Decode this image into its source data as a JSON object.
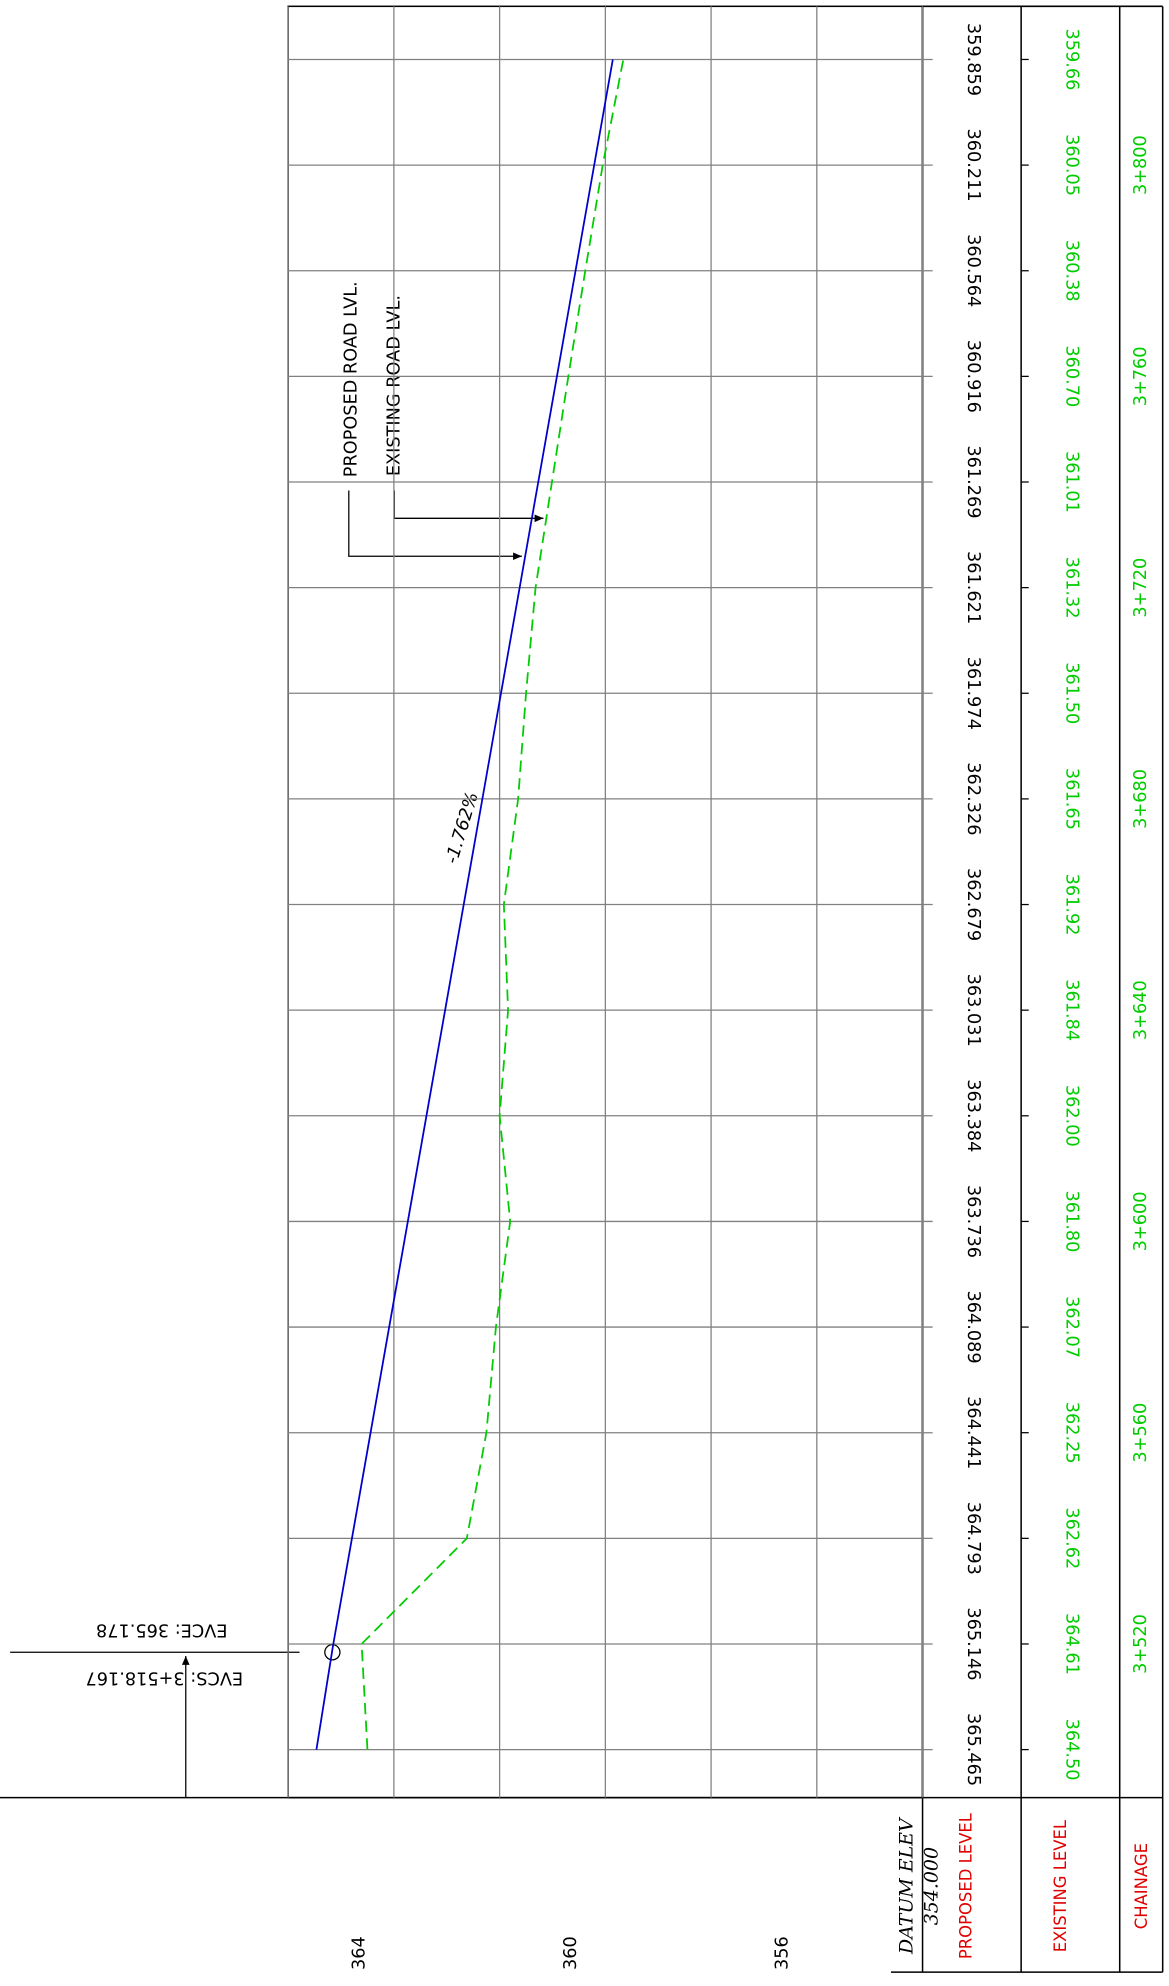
{
  "chart_data": {
    "type": "profile",
    "categories": [
      null,
      "3+520",
      null,
      "3+560",
      null,
      "3+600",
      null,
      "3+640",
      null,
      "3+680",
      null,
      "3+720",
      null,
      "3+760",
      null,
      "3+800",
      null
    ],
    "category_title": "CHAINAGE",
    "series": [
      {
        "name": "PROPOSED LEVEL",
        "color": "#0000cc",
        "line_style": "solid",
        "values": [
          365.465,
          365.146,
          364.793,
          364.441,
          364.089,
          363.736,
          363.384,
          363.031,
          362.679,
          362.326,
          361.974,
          361.621,
          361.269,
          360.916,
          360.564,
          360.211,
          359.859
        ]
      },
      {
        "name": "EXISTING LEVEL",
        "color": "#00cc00",
        "line_style": "dashed",
        "values": [
          364.5,
          364.61,
          362.62,
          362.25,
          362.07,
          361.8,
          362.0,
          361.84,
          361.92,
          361.65,
          361.5,
          361.32,
          361.01,
          360.7,
          360.38,
          360.05,
          359.66
        ],
        "value_labels": [
          "364.50",
          "364.61",
          "362.62",
          "362.25",
          "362.07",
          "361.80",
          "362.00",
          "361.84",
          "361.92",
          "361.65",
          "361.50",
          "361.32",
          "361.01",
          "360.70",
          "360.38",
          "360.05",
          "359.66"
        ]
      }
    ],
    "ylim": [
      354,
      366
    ],
    "yticks": [
      356,
      360,
      364
    ],
    "minor_yticks": [
      354,
      358,
      362,
      366
    ],
    "grid": true,
    "datum_title": "DATUM ELEV",
    "datum": {
      "value": 354,
      "label": "354.000"
    },
    "annotations": {
      "grade": "-1.762%",
      "proposed_leader": "PROPOSED ROAD LVL.",
      "existing_leader": "EXISTING ROAD LVL.",
      "evce": "EVCE: 365.178",
      "evcs": "EVCS: 3+518.167"
    }
  }
}
